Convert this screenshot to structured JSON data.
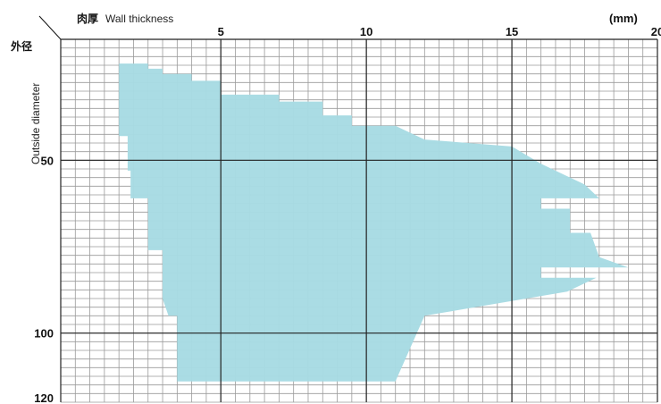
{
  "chart_data": {
    "type": "area",
    "title": "",
    "xlabel_jp": "肉厚",
    "xlabel": "Wall thickness",
    "ylabel_jp": "外径",
    "ylabel": "Outside diameter",
    "unit": "(mm)",
    "xlim": [
      -0.5,
      20
    ],
    "ylim": [
      120,
      15
    ],
    "x_ticks": [
      5,
      10,
      15,
      20
    ],
    "y_ticks": [
      50,
      100,
      120
    ],
    "grid": true,
    "series": [
      {
        "color": "#a7dbe3",
        "points": [
          [
            1.5,
            22
          ],
          [
            2.5,
            22
          ],
          [
            2.5,
            23.5
          ],
          [
            3,
            23.5
          ],
          [
            3,
            25
          ],
          [
            4,
            25
          ],
          [
            4,
            27
          ],
          [
            5,
            27
          ],
          [
            5,
            31
          ],
          [
            7,
            31
          ],
          [
            7,
            33
          ],
          [
            8.5,
            33
          ],
          [
            8.5,
            37
          ],
          [
            9.5,
            37
          ],
          [
            9.5,
            40
          ],
          [
            11,
            40
          ],
          [
            12,
            44
          ],
          [
            15,
            46
          ],
          [
            16,
            51
          ],
          [
            17.5,
            57
          ],
          [
            18,
            61
          ],
          [
            16,
            61
          ],
          [
            16,
            64
          ],
          [
            17,
            64
          ],
          [
            17,
            71
          ],
          [
            17.7,
            71
          ],
          [
            18,
            78
          ],
          [
            19,
            81
          ],
          [
            16,
            81
          ],
          [
            16,
            84
          ],
          [
            17.9,
            84
          ],
          [
            16.9,
            88
          ],
          [
            12,
            95
          ],
          [
            11,
            114
          ],
          [
            3.5,
            114
          ],
          [
            3.5,
            95
          ],
          [
            3.2,
            95
          ],
          [
            3,
            90
          ],
          [
            3,
            76
          ],
          [
            2.5,
            76
          ],
          [
            2.5,
            61
          ],
          [
            1.9,
            61
          ],
          [
            1.9,
            53
          ],
          [
            1.8,
            53
          ],
          [
            1.8,
            43
          ],
          [
            1.5,
            43
          ]
        ]
      }
    ]
  }
}
